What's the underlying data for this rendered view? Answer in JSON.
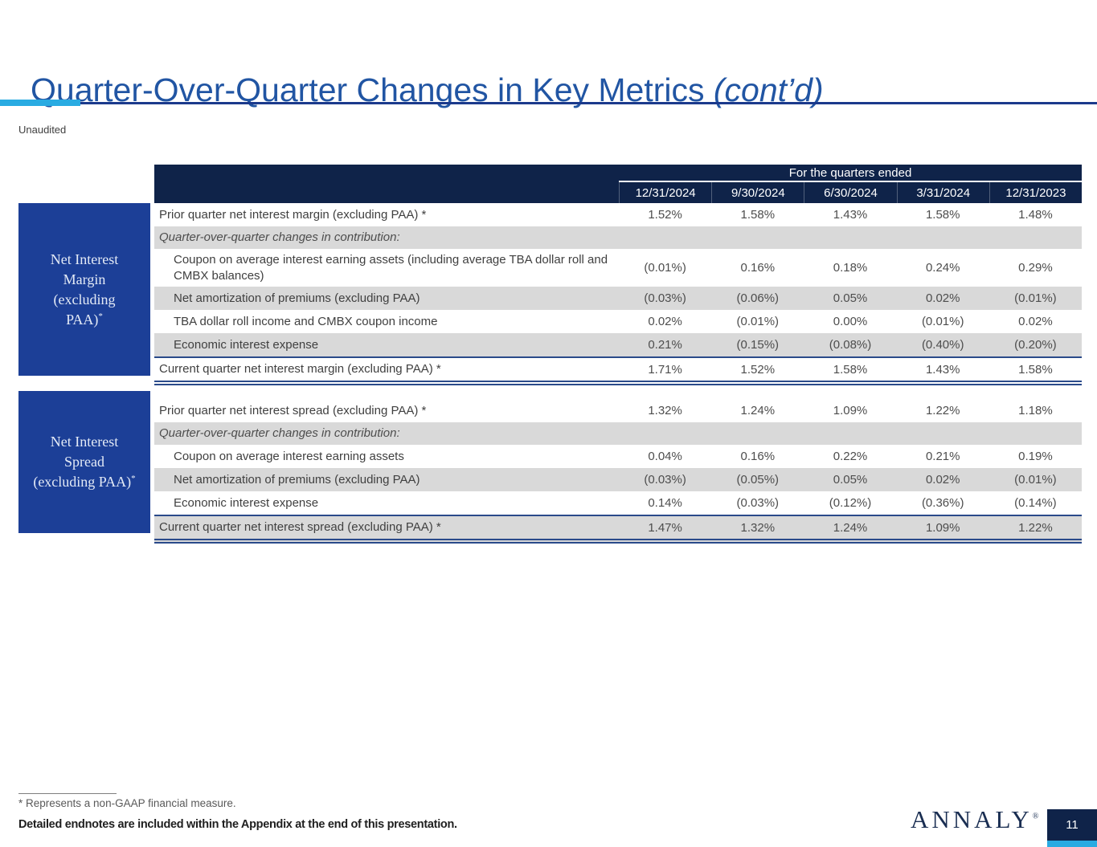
{
  "slide": {
    "title_main": "Quarter-Over-Quarter Changes in Key Metrics ",
    "title_italic": "(cont’d)",
    "subtitle": "Unaudited",
    "page_number": "11",
    "logo_text": "ANNALY",
    "logo_mark": "®"
  },
  "colors": {
    "accent_cyan": "#29ABE2",
    "header_navy": "#0F2349",
    "side_box_blue": "#1C3F97",
    "title_blue": "#2155A3",
    "rule_blue": "#1B3A8C",
    "row_shade_gray": "#D9D9D9",
    "total_border_blue": "#2A4A8A"
  },
  "table": {
    "header": {
      "group_label": "For the quarters ended",
      "columns": [
        "12/31/2024",
        "9/30/2024",
        "6/30/2024",
        "3/31/2024",
        "12/31/2023"
      ]
    },
    "sections": [
      {
        "side_label_lines": [
          "Net Interest",
          "Margin",
          "(excluding",
          "PAA)"
        ],
        "side_label_sup": "*",
        "rows": [
          {
            "label": "Prior quarter net interest margin (excluding PAA) *",
            "values": [
              "1.52%",
              "1.58%",
              "1.43%",
              "1.58%",
              "1.48%"
            ],
            "style": "plain",
            "shade": false
          },
          {
            "label": "Quarter-over-quarter changes in contribution:",
            "values": [
              "",
              "",
              "",
              "",
              ""
            ],
            "style": "subhead",
            "shade": true
          },
          {
            "label": "Coupon on average interest earning assets (including average TBA dollar roll and CMBX balances)",
            "values": [
              "(0.01%)",
              "0.16%",
              "0.18%",
              "0.24%",
              "0.29%"
            ],
            "style": "indent",
            "shade": false
          },
          {
            "label": "Net amortization of premiums (excluding PAA)",
            "values": [
              "(0.03%)",
              "(0.06%)",
              "0.05%",
              "0.02%",
              "(0.01%)"
            ],
            "style": "indent",
            "shade": true
          },
          {
            "label": "TBA dollar roll income and CMBX coupon income",
            "values": [
              "0.02%",
              "(0.01%)",
              "0.00%",
              "(0.01%)",
              "0.02%"
            ],
            "style": "indent",
            "shade": false
          },
          {
            "label": "Economic interest expense",
            "values": [
              "0.21%",
              "(0.15%)",
              "(0.08%)",
              "(0.40%)",
              "(0.20%)"
            ],
            "style": "indent",
            "shade": true
          },
          {
            "label": "Current quarter net interest margin (excluding PAA) *",
            "values": [
              "1.71%",
              "1.52%",
              "1.58%",
              "1.43%",
              "1.58%"
            ],
            "style": "total",
            "shade": false
          }
        ]
      },
      {
        "side_label_lines": [
          "Net Interest",
          "Spread",
          "(excluding PAA)"
        ],
        "side_label_sup": "*",
        "rows": [
          {
            "label": "Prior quarter net interest spread (excluding PAA) *",
            "values": [
              "1.32%",
              "1.24%",
              "1.09%",
              "1.22%",
              "1.18%"
            ],
            "style": "plain",
            "shade": false
          },
          {
            "label": "Quarter-over-quarter changes in contribution:",
            "values": [
              "",
              "",
              "",
              "",
              ""
            ],
            "style": "subhead",
            "shade": true
          },
          {
            "label": "Coupon on average interest earning assets",
            "values": [
              "0.04%",
              "0.16%",
              "0.22%",
              "0.21%",
              "0.19%"
            ],
            "style": "indent",
            "shade": false
          },
          {
            "label": "Net amortization of premiums (excluding PAA)",
            "values": [
              "(0.03%)",
              "(0.05%)",
              "0.05%",
              "0.02%",
              "(0.01%)"
            ],
            "style": "indent",
            "shade": true
          },
          {
            "label": "Economic interest expense",
            "values": [
              "0.14%",
              "(0.03%)",
              "(0.12%)",
              "(0.36%)",
              "(0.14%)"
            ],
            "style": "indent",
            "shade": false
          },
          {
            "label": "Current quarter net interest spread (excluding PAA) *",
            "values": [
              "1.47%",
              "1.32%",
              "1.24%",
              "1.09%",
              "1.22%"
            ],
            "style": "total",
            "shade": true
          }
        ]
      }
    ]
  },
  "footer": {
    "note1": "* Represents a non-GAAP financial measure.",
    "note2": "Detailed endnotes are included within the Appendix at the end of this presentation."
  }
}
